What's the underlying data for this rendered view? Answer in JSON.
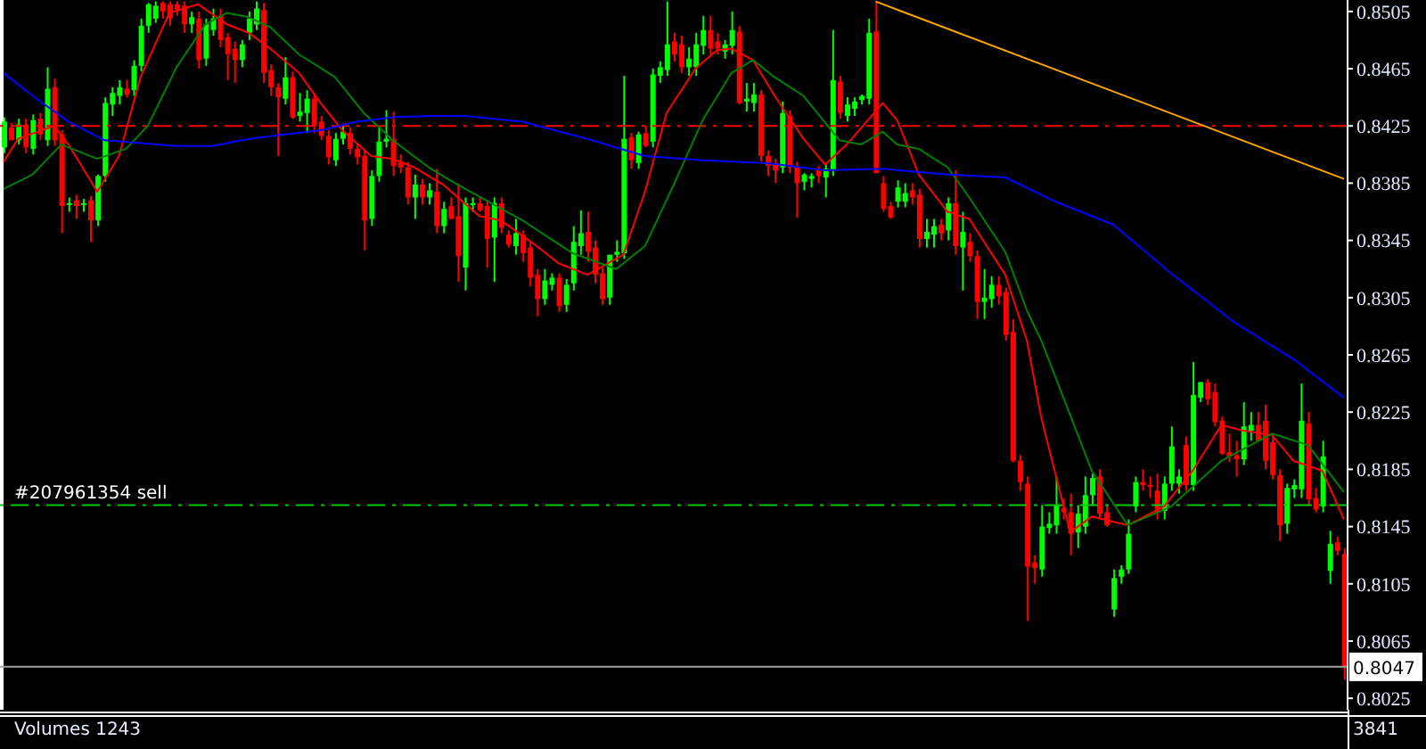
{
  "chart_data": {
    "type": "candlestick",
    "categories": [
      null,
      null,
      null,
      null,
      null,
      null,
      null,
      null,
      null,
      null,
      null,
      null,
      null,
      null,
      null,
      null,
      null,
      null,
      null,
      null,
      null,
      null,
      null,
      null,
      null,
      null,
      null,
      null,
      null,
      null,
      null,
      null,
      null,
      null,
      null,
      null,
      null,
      null,
      null,
      null,
      null,
      null,
      null,
      null,
      null,
      null,
      null,
      null,
      null,
      null,
      null,
      null,
      null,
      null,
      null,
      null,
      null,
      null,
      null,
      null,
      null,
      null,
      null,
      null,
      null,
      null,
      null,
      null,
      null,
      null,
      null,
      null,
      null,
      null,
      null,
      null,
      null,
      null,
      null,
      null,
      null,
      null,
      null,
      null,
      null,
      null,
      null,
      null,
      null,
      null,
      null,
      null,
      null,
      null,
      null,
      null,
      null,
      null,
      null,
      null,
      null,
      null,
      null,
      null,
      null,
      null,
      null,
      null,
      null,
      null,
      null,
      null,
      null,
      null,
      null,
      null,
      null,
      null,
      null,
      null,
      null,
      null,
      null,
      null,
      null,
      null,
      null,
      null,
      null,
      null,
      null,
      null,
      null,
      null,
      null,
      null,
      null,
      null,
      null,
      null,
      null,
      null,
      null,
      null,
      null,
      null,
      null,
      null,
      null,
      null,
      null,
      null,
      null,
      null,
      null,
      null,
      null,
      null,
      null,
      null,
      null,
      null,
      null,
      null,
      null,
      null,
      null,
      null,
      null,
      null,
      null,
      null,
      null,
      null,
      null,
      null,
      null,
      null,
      null,
      null,
      null,
      null,
      null,
      null,
      null,
      null,
      null
    ],
    "ohlc": [
      [
        0.841,
        0.8431,
        0.8406,
        0.8428
      ],
      [
        0.8424,
        0.8427,
        0.8415,
        0.8415
      ],
      [
        0.8415,
        0.843,
        0.8412,
        0.8426
      ],
      [
        0.8426,
        0.843,
        0.8406,
        0.841
      ],
      [
        0.8409,
        0.8433,
        0.8405,
        0.8429
      ],
      [
        0.843,
        0.8434,
        0.8415,
        0.8419
      ],
      [
        0.8415,
        0.8466,
        0.8411,
        0.8451
      ],
      [
        0.8452,
        0.8458,
        0.8411,
        0.8415
      ],
      [
        0.8419,
        0.8422,
        0.835,
        0.8369
      ],
      [
        0.837,
        0.8375,
        0.8365,
        0.8371
      ],
      [
        0.8373,
        0.8377,
        0.836,
        0.8369
      ],
      [
        0.837,
        0.8374,
        0.8365,
        0.8371
      ],
      [
        0.8373,
        0.8376,
        0.8344,
        0.8359
      ],
      [
        0.8359,
        0.8391,
        0.8355,
        0.839
      ],
      [
        0.839,
        0.8445,
        0.8386,
        0.8441
      ],
      [
        0.844,
        0.8452,
        0.8432,
        0.8448
      ],
      [
        0.8446,
        0.8457,
        0.844,
        0.8452
      ],
      [
        0.8451,
        0.8457,
        0.8445,
        0.8447
      ],
      [
        0.845,
        0.8471,
        0.8446,
        0.8467
      ],
      [
        0.8467,
        0.85,
        0.8463,
        0.8495
      ],
      [
        0.8495,
        0.8511,
        0.849,
        0.851
      ],
      [
        0.85,
        0.8512,
        0.8497,
        0.8509
      ],
      [
        0.8511,
        0.8512,
        0.85,
        0.8505
      ],
      [
        0.851,
        0.8512,
        0.8495,
        0.85
      ],
      [
        0.851,
        0.8512,
        0.8502,
        0.8506
      ],
      [
        0.8509,
        0.8512,
        0.849,
        0.8496
      ],
      [
        0.8496,
        0.8505,
        0.849,
        0.8501
      ],
      [
        0.85,
        0.8505,
        0.8465,
        0.8471
      ],
      [
        0.8472,
        0.85,
        0.8467,
        0.8496
      ],
      [
        0.8492,
        0.8507,
        0.8488,
        0.85
      ],
      [
        0.8502,
        0.8507,
        0.848,
        0.8485
      ],
      [
        0.8487,
        0.849,
        0.8457,
        0.8475
      ],
      [
        0.8479,
        0.8484,
        0.8455,
        0.8471
      ],
      [
        0.8471,
        0.8485,
        0.8466,
        0.8482
      ],
      [
        0.849,
        0.8505,
        0.8485,
        0.85
      ],
      [
        0.8496,
        0.8512,
        0.8492,
        0.8507
      ],
      [
        0.8506,
        0.8511,
        0.8455,
        0.8462
      ],
      [
        0.8464,
        0.8468,
        0.8446,
        0.8452
      ],
      [
        0.8452,
        0.8455,
        0.8404,
        0.8445
      ],
      [
        0.8444,
        0.8473,
        0.844,
        0.8459
      ],
      [
        0.8459,
        0.8463,
        0.843,
        0.8431
      ],
      [
        0.8432,
        0.8448,
        0.8428,
        0.8435
      ],
      [
        0.8434,
        0.845,
        0.842,
        0.8444
      ],
      [
        0.8444,
        0.8448,
        0.842,
        0.8425
      ],
      [
        0.8428,
        0.8432,
        0.8415,
        0.8418
      ],
      [
        0.8418,
        0.8422,
        0.8398,
        0.8403
      ],
      [
        0.8401,
        0.842,
        0.8397,
        0.8416
      ],
      [
        0.8416,
        0.8425,
        0.8412,
        0.8421
      ],
      [
        0.842,
        0.8424,
        0.8405,
        0.8409
      ],
      [
        0.8409,
        0.8413,
        0.8398,
        0.8403
      ],
      [
        0.8404,
        0.8408,
        0.8338,
        0.8359
      ],
      [
        0.836,
        0.8394,
        0.8355,
        0.839
      ],
      [
        0.839,
        0.8425,
        0.8386,
        0.8414
      ],
      [
        0.8414,
        0.8436,
        0.841,
        0.8416
      ],
      [
        0.8416,
        0.8435,
        0.839,
        0.8397
      ],
      [
        0.84,
        0.8405,
        0.8392,
        0.8396
      ],
      [
        0.8396,
        0.84,
        0.837,
        0.8375
      ],
      [
        0.8375,
        0.8391,
        0.836,
        0.8384
      ],
      [
        0.8384,
        0.8388,
        0.837,
        0.8375
      ],
      [
        0.8375,
        0.8385,
        0.837,
        0.838
      ],
      [
        0.8379,
        0.8395,
        0.835,
        0.8355
      ],
      [
        0.8355,
        0.8372,
        0.835,
        0.8367
      ],
      [
        0.8369,
        0.8375,
        0.836,
        0.836
      ],
      [
        0.8362,
        0.8385,
        0.8316,
        0.8334
      ],
      [
        0.8326,
        0.8375,
        0.831,
        0.8371
      ],
      [
        0.837,
        0.8375,
        0.8365,
        0.8371
      ],
      [
        0.8371,
        0.8375,
        0.8365,
        0.8366
      ],
      [
        0.8369,
        0.8373,
        0.8326,
        0.8346
      ],
      [
        0.8347,
        0.8375,
        0.8316,
        0.8371
      ],
      [
        0.8371,
        0.8375,
        0.835,
        0.8354
      ],
      [
        0.8349,
        0.8352,
        0.834,
        0.8342
      ],
      [
        0.8341,
        0.836,
        0.8335,
        0.835
      ],
      [
        0.8349,
        0.8352,
        0.833,
        0.8336
      ],
      [
        0.834,
        0.8345,
        0.8313,
        0.8319
      ],
      [
        0.8321,
        0.8325,
        0.8292,
        0.8304
      ],
      [
        0.8304,
        0.8325,
        0.83,
        0.8317
      ],
      [
        0.8314,
        0.8322,
        0.831,
        0.8319
      ],
      [
        0.8319,
        0.8322,
        0.8295,
        0.8299
      ],
      [
        0.83,
        0.8318,
        0.8295,
        0.8314
      ],
      [
        0.8315,
        0.8355,
        0.831,
        0.8344
      ],
      [
        0.8341,
        0.8366,
        0.8335,
        0.835
      ],
      [
        0.8351,
        0.8365,
        0.833,
        0.8337
      ],
      [
        0.834,
        0.8345,
        0.8315,
        0.8321
      ],
      [
        0.8322,
        0.8326,
        0.83,
        0.8304
      ],
      [
        0.8305,
        0.8335,
        0.83,
        0.8335
      ],
      [
        0.8335,
        0.8345,
        0.833,
        0.8337
      ],
      [
        0.8336,
        0.846,
        0.8332,
        0.8416
      ],
      [
        0.8417,
        0.842,
        0.8395,
        0.8401
      ],
      [
        0.8399,
        0.8421,
        0.8395,
        0.8419
      ],
      [
        0.842,
        0.8425,
        0.841,
        0.8411
      ],
      [
        0.8414,
        0.8465,
        0.841,
        0.8461
      ],
      [
        0.846,
        0.847,
        0.8455,
        0.8466
      ],
      [
        0.8464,
        0.8512,
        0.846,
        0.8482
      ],
      [
        0.8484,
        0.849,
        0.847,
        0.8475
      ],
      [
        0.8482,
        0.8488,
        0.8462,
        0.8466
      ],
      [
        0.8466,
        0.848,
        0.846,
        0.8472
      ],
      [
        0.8466,
        0.849,
        0.846,
        0.8482
      ],
      [
        0.8481,
        0.8502,
        0.8475,
        0.8492
      ],
      [
        0.8492,
        0.8502,
        0.8475,
        0.8479
      ],
      [
        0.8484,
        0.849,
        0.8475,
        0.8479
      ],
      [
        0.8477,
        0.8485,
        0.8472,
        0.8482
      ],
      [
        0.8481,
        0.8505,
        0.8475,
        0.8492
      ],
      [
        0.8491,
        0.8495,
        0.844,
        0.8441
      ],
      [
        0.8442,
        0.8455,
        0.8435,
        0.8444
      ],
      [
        0.8441,
        0.8455,
        0.8435,
        0.8447
      ],
      [
        0.8447,
        0.845,
        0.84,
        0.8404
      ],
      [
        0.8404,
        0.8408,
        0.839,
        0.8397
      ],
      [
        0.8399,
        0.8402,
        0.8385,
        0.8394
      ],
      [
        0.8396,
        0.8442,
        0.8392,
        0.8434
      ],
      [
        0.8432,
        0.8436,
        0.8392,
        0.8396
      ],
      [
        0.8397,
        0.84,
        0.8361,
        0.8385
      ],
      [
        0.8386,
        0.8392,
        0.838,
        0.8391
      ],
      [
        0.8388,
        0.8392,
        0.8382,
        0.839
      ],
      [
        0.8394,
        0.8397,
        0.8385,
        0.839
      ],
      [
        0.8389,
        0.8398,
        0.8375,
        0.8395
      ],
      [
        0.8394,
        0.8492,
        0.839,
        0.8457
      ],
      [
        0.8456,
        0.846,
        0.843,
        0.8434
      ],
      [
        0.8432,
        0.8445,
        0.8428,
        0.844
      ],
      [
        0.8437,
        0.8445,
        0.8432,
        0.8442
      ],
      [
        0.8443,
        0.8447,
        0.844,
        0.8446
      ],
      [
        0.8444,
        0.85,
        0.844,
        0.849
      ],
      [
        0.8491,
        0.8512,
        0.8392,
        0.8392
      ],
      [
        0.8385,
        0.839,
        0.8365,
        0.8367
      ],
      [
        0.8369,
        0.8372,
        0.836,
        0.8361
      ],
      [
        0.8372,
        0.8387,
        0.8368,
        0.8382
      ],
      [
        0.8372,
        0.8385,
        0.8368,
        0.8378
      ],
      [
        0.838,
        0.8385,
        0.837,
        0.8375
      ],
      [
        0.8377,
        0.8381,
        0.834,
        0.8346
      ],
      [
        0.8346,
        0.836,
        0.834,
        0.8351
      ],
      [
        0.8349,
        0.836,
        0.834,
        0.8355
      ],
      [
        0.8356,
        0.836,
        0.8345,
        0.835
      ],
      [
        0.8352,
        0.8375,
        0.8345,
        0.8371
      ],
      [
        0.8371,
        0.8394,
        0.8335,
        0.8341
      ],
      [
        0.834,
        0.8365,
        0.831,
        0.8351
      ],
      [
        0.8344,
        0.835,
        0.833,
        0.8334
      ],
      [
        0.8334,
        0.8338,
        0.829,
        0.8302
      ],
      [
        0.8302,
        0.8325,
        0.829,
        0.8305
      ],
      [
        0.8304,
        0.832,
        0.8298,
        0.8314
      ],
      [
        0.8314,
        0.832,
        0.83,
        0.8306
      ],
      [
        0.8309,
        0.8312,
        0.8275,
        0.8279
      ],
      [
        0.8281,
        0.829,
        0.819,
        0.8191
      ],
      [
        0.8191,
        0.8195,
        0.817,
        0.8176
      ],
      [
        0.8175,
        0.818,
        0.8079,
        0.8117
      ],
      [
        0.812,
        0.8125,
        0.8105,
        0.8116
      ],
      [
        0.8115,
        0.816,
        0.811,
        0.8145
      ],
      [
        0.8144,
        0.8155,
        0.814,
        0.8147
      ],
      [
        0.8146,
        0.818,
        0.814,
        0.816
      ],
      [
        0.8158,
        0.8165,
        0.815,
        0.8155
      ],
      [
        0.8155,
        0.8168,
        0.8125,
        0.814
      ],
      [
        0.8141,
        0.816,
        0.813,
        0.8154
      ],
      [
        0.8145,
        0.818,
        0.814,
        0.8167
      ],
      [
        0.8167,
        0.8182,
        0.816,
        0.8179
      ],
      [
        0.818,
        0.8185,
        0.815,
        0.8154
      ],
      [
        0.8155,
        0.816,
        0.8145,
        0.8146
      ],
      [
        0.8087,
        0.8115,
        0.8082,
        0.8109
      ],
      [
        0.811,
        0.8118,
        0.8105,
        0.8115
      ],
      [
        0.8115,
        0.815,
        0.8112,
        0.814
      ],
      [
        0.8159,
        0.818,
        0.8155,
        0.8176
      ],
      [
        0.8176,
        0.8185,
        0.817,
        0.8174
      ],
      [
        0.8174,
        0.818,
        0.8165,
        0.8173
      ],
      [
        0.817,
        0.8182,
        0.815,
        0.8155
      ],
      [
        0.8156,
        0.818,
        0.815,
        0.8175
      ],
      [
        0.8175,
        0.8215,
        0.817,
        0.8201
      ],
      [
        0.8175,
        0.8185,
        0.8168,
        0.818
      ],
      [
        0.8202,
        0.8208,
        0.817,
        0.8174
      ],
      [
        0.8174,
        0.826,
        0.817,
        0.8237
      ],
      [
        0.8235,
        0.8246,
        0.8232,
        0.8246
      ],
      [
        0.8246,
        0.8248,
        0.823,
        0.8234
      ],
      [
        0.8239,
        0.8245,
        0.8215,
        0.8218
      ],
      [
        0.8219,
        0.8222,
        0.8195,
        0.8196
      ],
      [
        0.8197,
        0.821,
        0.819,
        0.8194
      ],
      [
        0.8195,
        0.8205,
        0.818,
        0.8192
      ],
      [
        0.8192,
        0.8232,
        0.8188,
        0.8215
      ],
      [
        0.8212,
        0.8225,
        0.8205,
        0.8216
      ],
      [
        0.8216,
        0.8225,
        0.8205,
        0.8205
      ],
      [
        0.8219,
        0.823,
        0.8185,
        0.8191
      ],
      [
        0.8204,
        0.821,
        0.8178,
        0.8181
      ],
      [
        0.8181,
        0.8185,
        0.8135,
        0.8146
      ],
      [
        0.8147,
        0.8175,
        0.814,
        0.8172
      ],
      [
        0.8171,
        0.8178,
        0.8165,
        0.8174
      ],
      [
        0.8171,
        0.8245,
        0.8165,
        0.8219
      ],
      [
        0.8217,
        0.8225,
        0.816,
        0.8164
      ],
      [
        0.8165,
        0.8172,
        0.8155,
        0.8157
      ],
      [
        0.8159,
        0.8205,
        0.8155,
        0.8194
      ],
      [
        0.8114,
        0.8142,
        0.8105,
        0.8133
      ],
      [
        0.8134,
        0.8138,
        0.8125,
        0.8128
      ],
      [
        0.8126,
        0.813,
        0.8038,
        0.8047
      ]
    ],
    "colors": [
      "#00ff00",
      "#ff0000",
      "#00ff00",
      "#ff0000",
      "#00ff00",
      "#ff0000",
      "#00ff00",
      "#ff0000",
      "#ff0000",
      "#00ff00",
      "#ff0000",
      "#00ff00",
      "#ff0000",
      "#00ff00",
      "#00ff00",
      "#00ff00",
      "#00ff00",
      "#ff0000",
      "#00ff00",
      "#00ff00",
      "#00ff00",
      "#00ff00",
      "#ff0000",
      "#ff0000",
      "#ff0000",
      "#ff0000",
      "#00ff00",
      "#ff0000",
      "#00ff00",
      "#00ff00",
      "#ff0000",
      "#ff0000",
      "#ff0000",
      "#00ff00",
      "#00ff00",
      "#00ff00",
      "#ff0000",
      "#ff0000",
      "#ff0000",
      "#00ff00",
      "#ff0000",
      "#00ff00",
      "#00ff00",
      "#ff0000",
      "#ff0000",
      "#ff0000",
      "#00ff00",
      "#00ff00",
      "#ff0000",
      "#ff0000",
      "#ff0000",
      "#00ff00",
      "#00ff00",
      "#00ff00",
      "#ff0000",
      "#ff0000",
      "#ff0000",
      "#00ff00",
      "#ff0000",
      "#00ff00",
      "#ff0000",
      "#00ff00",
      "#ff0000",
      "#ff0000",
      "#00ff00",
      "#00ff00",
      "#ff0000",
      "#ff0000",
      "#00ff00",
      "#ff0000",
      "#ff0000",
      "#00ff00",
      "#ff0000",
      "#ff0000",
      "#ff0000",
      "#00ff00",
      "#00ff00",
      "#ff0000",
      "#00ff00",
      "#00ff00",
      "#00ff00",
      "#ff0000",
      "#ff0000",
      "#ff0000",
      "#00ff00",
      "#00ff00",
      "#00ff00",
      "#ff0000",
      "#00ff00",
      "#ff0000",
      "#00ff00",
      "#00ff00",
      "#00ff00",
      "#ff0000",
      "#ff0000",
      "#00ff00",
      "#00ff00",
      "#00ff00",
      "#ff0000",
      "#ff0000",
      "#00ff00",
      "#00ff00",
      "#ff0000",
      "#00ff00",
      "#00ff00",
      "#ff0000",
      "#ff0000",
      "#ff0000",
      "#00ff00",
      "#ff0000",
      "#ff0000",
      "#00ff00",
      "#00ff00",
      "#ff0000",
      "#00ff00",
      "#00ff00",
      "#ff0000",
      "#00ff00",
      "#00ff00",
      "#00ff00",
      "#00ff00",
      "#ff0000",
      "#ff0000",
      "#ff0000",
      "#00ff00",
      "#00ff00",
      "#ff0000",
      "#ff0000",
      "#00ff00",
      "#00ff00",
      "#ff0000",
      "#00ff00",
      "#ff0000",
      "#00ff00",
      "#ff0000",
      "#ff0000",
      "#00ff00",
      "#00ff00",
      "#ff0000",
      "#ff0000",
      "#ff0000",
      "#ff0000",
      "#ff0000",
      "#ff0000",
      "#00ff00",
      "#00ff00",
      "#00ff00",
      "#ff0000",
      "#ff0000",
      "#00ff00",
      "#00ff00",
      "#00ff00",
      "#ff0000",
      "#ff0000",
      "#00ff00",
      "#00ff00",
      "#00ff00",
      "#00ff00",
      "#ff0000",
      "#ff0000",
      "#ff0000",
      "#00ff00",
      "#00ff00",
      "#00ff00",
      "#ff0000",
      "#00ff00",
      "#00ff00",
      "#ff0000",
      "#ff0000",
      "#ff0000",
      "#ff0000",
      "#ff0000",
      "#00ff00",
      "#00ff00",
      "#ff0000",
      "#ff0000",
      "#ff0000",
      "#ff0000",
      "#00ff00",
      "#00ff00",
      "#00ff00",
      "#ff0000",
      "#ff0000",
      "#00ff00",
      "#00ff00",
      "#ff0000",
      "#ff0000"
    ],
    "series": [
      {
        "type": "line",
        "color": "#ff0000",
        "values": [
          0.84,
          null,
          0.8416,
          null,
          null,
          null,
          null,
          0.8425,
          null,
          0.8412,
          null,
          null,
          null,
          0.8379,
          null,
          null,
          0.8404,
          null,
          null,
          0.8459,
          null,
          null,
          null,
          0.8504,
          null,
          null,
          null,
          0.851,
          null,
          null,
          null,
          0.8496,
          null,
          null,
          0.849,
          null,
          null,
          0.8479,
          null,
          null,
          null,
          0.8462,
          null,
          null,
          0.8441,
          null,
          null,
          0.8422,
          null,
          null,
          null,
          0.8404,
          null,
          null,
          0.8402,
          null,
          null,
          0.8396,
          null,
          null,
          null,
          0.8384,
          null,
          null,
          null,
          null,
          0.8362,
          null,
          null,
          0.8359,
          null,
          null,
          null,
          null,
          0.8341,
          null,
          null,
          0.8329,
          null,
          null,
          null,
          0.8321,
          null,
          null,
          null,
          null,
          0.8335,
          null,
          null,
          0.8379,
          null,
          null,
          0.8434,
          null,
          null,
          null,
          0.8465,
          null,
          null,
          0.8478,
          null,
          0.8479,
          null,
          null,
          0.8471,
          null,
          null,
          0.8446,
          null,
          null,
          null,
          0.8416,
          null,
          null,
          0.8398,
          null,
          null,
          0.8412,
          null,
          null,
          null,
          null,
          0.8441,
          null,
          0.8429,
          null,
          null,
          0.8391,
          null,
          null,
          null,
          0.8365,
          null,
          null,
          0.836,
          null,
          null,
          null,
          null,
          0.8321,
          null,
          null,
          0.8275,
          null,
          0.8221,
          null,
          null,
          null,
          0.8141,
          null,
          null,
          0.8152,
          null,
          null,
          null,
          null,
          0.8146,
          null,
          null,
          null,
          null,
          0.8159,
          null,
          null,
          null,
          0.8184,
          null,
          null,
          null,
          0.8216,
          null,
          null,
          0.8212,
          null,
          null,
          null,
          0.8209,
          null,
          null,
          0.8191,
          null,
          null,
          null,
          0.8184,
          null,
          null,
          0.815
        ]
      },
      {
        "type": "line",
        "color": "#008000",
        "values": [
          0.8381,
          null,
          null,
          null,
          0.8391,
          null,
          null,
          null,
          0.8412,
          null,
          null,
          null,
          null,
          0.8402,
          null,
          null,
          null,
          0.8409,
          null,
          null,
          0.8425,
          null,
          null,
          null,
          0.8466,
          null,
          null,
          null,
          0.8496,
          null,
          null,
          0.8504,
          null,
          null,
          0.8501,
          null,
          null,
          0.8494,
          null,
          null,
          null,
          0.8475,
          null,
          null,
          null,
          null,
          0.8459,
          null,
          null,
          null,
          0.8434,
          null,
          null,
          null,
          0.8415,
          null,
          null,
          null,
          null,
          0.8396,
          null,
          null,
          null,
          0.8384,
          null,
          null,
          null,
          null,
          null,
          null,
          null,
          null,
          0.8359,
          null,
          null,
          null,
          null,
          null,
          null,
          0.8336,
          null,
          null,
          null,
          null,
          null,
          0.8325,
          null,
          null,
          null,
          0.8341,
          null,
          null,
          null,
          0.8384,
          null,
          null,
          null,
          0.8429,
          null,
          null,
          null,
          0.8462,
          null,
          null,
          0.8471,
          null,
          null,
          0.8459,
          null,
          null,
          null,
          0.8446,
          null,
          null,
          null,
          null,
          0.8415,
          null,
          null,
          0.8412,
          null,
          null,
          0.8421,
          null,
          0.8412,
          null,
          null,
          0.8409,
          null,
          null,
          null,
          0.8396,
          null,
          null,
          0.8375,
          null,
          null,
          null,
          null,
          0.8337,
          null,
          null,
          0.8296,
          null,
          0.8275,
          null,
          null,
          null,
          null,
          null,
          null,
          0.8184,
          null,
          null,
          null,
          null,
          0.8146,
          null,
          null,
          null,
          null,
          null,
          0.8159,
          null,
          null,
          null,
          null,
          null,
          null,
          0.8191,
          null,
          null,
          null,
          null,
          null,
          null,
          0.821,
          null,
          null,
          null,
          null,
          0.8202,
          null,
          null,
          null,
          null,
          0.8169
        ]
      },
      {
        "type": "line",
        "color": "#0000ff",
        "values": [
          0.8462,
          null,
          null,
          null,
          0.8446,
          null,
          null,
          null,
          null,
          0.8428,
          null,
          null,
          null,
          null,
          0.8415,
          null,
          null,
          null,
          null,
          null,
          null,
          null,
          null,
          null,
          0.8411,
          null,
          null,
          null,
          null,
          0.8411,
          null,
          null,
          null,
          null,
          0.8416,
          null,
          null,
          null,
          null,
          0.8419,
          null,
          null,
          null,
          null,
          0.8422,
          null,
          null,
          null,
          null,
          0.8428,
          null,
          null,
          null,
          null,
          0.8431,
          null,
          null,
          null,
          null,
          0.8432,
          null,
          null,
          null,
          null,
          0.8432,
          null,
          null,
          null,
          null,
          null,
          null,
          null,
          0.8428,
          null,
          null,
          null,
          null,
          null,
          null,
          null,
          null,
          0.8416,
          null,
          null,
          null,
          null,
          null,
          null,
          null,
          0.8404,
          null,
          null,
          null,
          null,
          null,
          null,
          null,
          0.8401,
          null,
          null,
          null,
          null,
          null,
          null,
          null,
          null,
          0.8399,
          null,
          null,
          null,
          null,
          null,
          null,
          null,
          0.8394,
          null,
          null,
          null,
          null,
          null,
          null,
          null,
          0.8395,
          null,
          null,
          null,
          null,
          null,
          null,
          null,
          null,
          0.8391,
          null,
          null,
          null,
          null,
          null,
          null,
          null,
          0.8389,
          null,
          null,
          null,
          null,
          null,
          null,
          0.8372,
          null,
          null,
          null,
          null,
          null,
          null,
          null,
          0.8356,
          null,
          null,
          null,
          null,
          null,
          null,
          null,
          0.8322,
          null,
          null,
          null,
          null,
          null,
          null,
          null,
          null,
          0.8287,
          null,
          null,
          null,
          null,
          null,
          null,
          null,
          0.8262,
          null,
          null,
          null,
          null,
          null,
          null,
          0.8235
        ]
      },
      {
        "type": "line",
        "color": "#ffa500",
        "values": [
          null,
          null,
          null,
          null,
          null,
          null,
          null,
          null,
          null,
          null,
          null,
          null,
          null,
          null,
          null,
          null,
          null,
          null,
          null,
          null,
          null,
          null,
          null,
          null,
          null,
          null,
          null,
          null,
          null,
          null,
          null,
          null,
          null,
          null,
          null,
          null,
          null,
          null,
          null,
          null,
          null,
          null,
          null,
          null,
          null,
          null,
          null,
          null,
          null,
          null,
          null,
          null,
          null,
          null,
          null,
          null,
          null,
          null,
          null,
          null,
          null,
          null,
          null,
          null,
          null,
          null,
          null,
          null,
          null,
          null,
          null,
          null,
          null,
          null,
          null,
          null,
          null,
          null,
          null,
          null,
          null,
          null,
          null,
          null,
          null,
          null,
          null,
          null,
          null,
          null,
          null,
          null,
          null,
          null,
          null,
          null,
          null,
          null,
          null,
          null,
          null,
          null,
          null,
          null,
          null,
          null,
          null,
          null,
          null,
          null,
          null,
          null,
          null,
          null,
          null,
          null,
          null,
          null,
          null,
          null,
          null,
          0.8512,
          null,
          null,
          null,
          null,
          null,
          null,
          null,
          null,
          null,
          null,
          null,
          null,
          null,
          null,
          null,
          null,
          null,
          null,
          null,
          null,
          null,
          null,
          null,
          null,
          null,
          null,
          null,
          null,
          null,
          null,
          null,
          null,
          null,
          null,
          null,
          null,
          null,
          null,
          null,
          null,
          null,
          null,
          null,
          null,
          null,
          null,
          null,
          null,
          null,
          null,
          null,
          null,
          null,
          null,
          null,
          null,
          null,
          null,
          null,
          null,
          null,
          null,
          null,
          null,
          0.8388
        ]
      }
    ],
    "ylim": [
      0.8017,
      0.8513
    ],
    "yticks": [
      0.8505,
      0.8465,
      0.8425,
      0.8385,
      0.8345,
      0.8305,
      0.8265,
      0.8225,
      0.8185,
      0.8145,
      0.8105,
      0.8065,
      0.8025
    ],
    "tick_labels": "y",
    "ref_lines": [
      {
        "axis": "y",
        "value": 0.8425,
        "color": "#ff0000",
        "line_style": "dashed"
      },
      {
        "axis": "y",
        "value": 0.816,
        "label": "#207961354 sell",
        "color": "#00c800",
        "line_style": "dashed"
      },
      {
        "axis": "y",
        "value": 0.8047,
        "label": "0.8047",
        "color": "#a0a0a0",
        "line_style": "solid"
      }
    ],
    "annotations": [
      "Volumes 1243",
      "3841"
    ]
  }
}
